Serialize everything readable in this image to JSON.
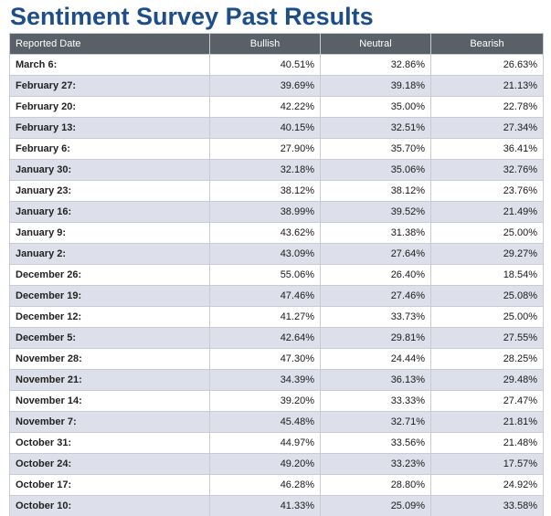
{
  "page": {
    "title": "Sentiment Survey Past Results"
  },
  "colors": {
    "title": "#1d4e89",
    "header_bg": "#5a6068",
    "row_alt_bg": "#dde0ea",
    "row_bg": "#ffffff"
  },
  "table": {
    "headers": [
      "Reported Date",
      "Bullish",
      "Neutral",
      "Bearish"
    ],
    "rows": [
      {
        "date": "March 6:",
        "bullish": "40.51%",
        "neutral": "32.86%",
        "bearish": "26.63%"
      },
      {
        "date": "February 27:",
        "bullish": "39.69%",
        "neutral": "39.18%",
        "bearish": "21.13%"
      },
      {
        "date": "February 20:",
        "bullish": "42.22%",
        "neutral": "35.00%",
        "bearish": "22.78%"
      },
      {
        "date": "February 13:",
        "bullish": "40.15%",
        "neutral": "32.51%",
        "bearish": "27.34%"
      },
      {
        "date": "February 6:",
        "bullish": "27.90%",
        "neutral": "35.70%",
        "bearish": "36.41%"
      },
      {
        "date": "January 30:",
        "bullish": "32.18%",
        "neutral": "35.06%",
        "bearish": "32.76%"
      },
      {
        "date": "January 23:",
        "bullish": "38.12%",
        "neutral": "38.12%",
        "bearish": "23.76%"
      },
      {
        "date": "January 16:",
        "bullish": "38.99%",
        "neutral": "39.52%",
        "bearish": "21.49%"
      },
      {
        "date": "January 9:",
        "bullish": "43.62%",
        "neutral": "31.38%",
        "bearish": "25.00%"
      },
      {
        "date": "January 2:",
        "bullish": "43.09%",
        "neutral": "27.64%",
        "bearish": "29.27%"
      },
      {
        "date": "December 26:",
        "bullish": "55.06%",
        "neutral": "26.40%",
        "bearish": "18.54%"
      },
      {
        "date": "December 19:",
        "bullish": "47.46%",
        "neutral": "27.46%",
        "bearish": "25.08%"
      },
      {
        "date": "December 12:",
        "bullish": "41.27%",
        "neutral": "33.73%",
        "bearish": "25.00%"
      },
      {
        "date": "December 5:",
        "bullish": "42.64%",
        "neutral": "29.81%",
        "bearish": "27.55%"
      },
      {
        "date": "November 28:",
        "bullish": "47.30%",
        "neutral": "24.44%",
        "bearish": "28.25%"
      },
      {
        "date": "November 21:",
        "bullish": "34.39%",
        "neutral": "36.13%",
        "bearish": "29.48%"
      },
      {
        "date": "November 14:",
        "bullish": "39.20%",
        "neutral": "33.33%",
        "bearish": "27.47%"
      },
      {
        "date": "November 7:",
        "bullish": "45.48%",
        "neutral": "32.71%",
        "bearish": "21.81%"
      },
      {
        "date": "October 31:",
        "bullish": "44.97%",
        "neutral": "33.56%",
        "bearish": "21.48%"
      },
      {
        "date": "October 24:",
        "bullish": "49.20%",
        "neutral": "33.23%",
        "bearish": "17.57%"
      },
      {
        "date": "October 17:",
        "bullish": "46.28%",
        "neutral": "28.80%",
        "bearish": "24.92%"
      },
      {
        "date": "October 10:",
        "bullish": "41.33%",
        "neutral": "25.09%",
        "bearish": "33.58%"
      }
    ]
  }
}
